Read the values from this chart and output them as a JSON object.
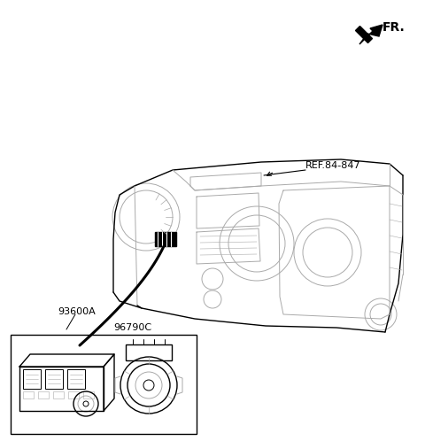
{
  "background_color": "#ffffff",
  "fr_label": "FR.",
  "ref_label": "REF.84-847",
  "part_label_1": "93600A",
  "part_label_2": "96790C",
  "figsize": [
    4.8,
    4.98
  ],
  "dpi": 100,
  "lc": "#000000",
  "lc_gray": "#aaaaaa",
  "lc_mid": "#666666"
}
